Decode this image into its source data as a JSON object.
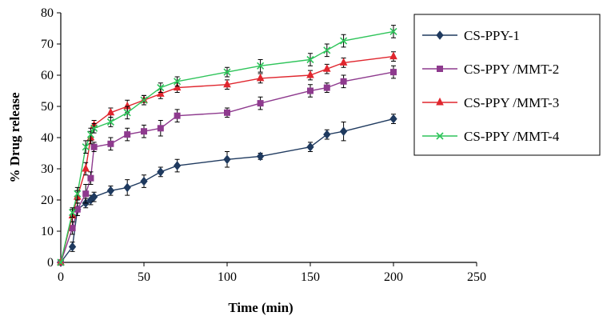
{
  "chart_data": {
    "type": "line",
    "title": "",
    "xlabel": "Time (min)",
    "ylabel": "% Drug release",
    "xlim": [
      0,
      250
    ],
    "ylim": [
      0,
      80
    ],
    "xticks": [
      0,
      50,
      100,
      150,
      200,
      250
    ],
    "yticks": [
      0,
      10,
      20,
      30,
      40,
      50,
      60,
      70,
      80
    ],
    "grid": false,
    "legend_position": "top-right",
    "series": [
      {
        "name": "CS-PPY-1",
        "color": "#1f3a5f",
        "marker": "diamond",
        "x": [
          0,
          7,
          10,
          15,
          18,
          20,
          30,
          40,
          50,
          60,
          70,
          100,
          120,
          150,
          160,
          170,
          200
        ],
        "y": [
          0,
          5,
          17,
          19,
          20,
          21,
          23,
          24,
          26,
          29,
          31,
          33,
          34,
          37,
          41,
          42,
          46
        ],
        "err": [
          0,
          1.5,
          2,
          1.5,
          1.5,
          1.5,
          1.5,
          2.5,
          2,
          1.5,
          2,
          2.5,
          1,
          1.5,
          1.5,
          3,
          1.5
        ]
      },
      {
        "name": "CS-PPY /MMT-2",
        "color": "#8e3a8e",
        "marker": "square",
        "x": [
          0,
          7,
          10,
          15,
          18,
          20,
          30,
          40,
          50,
          60,
          70,
          100,
          120,
          150,
          160,
          170,
          200
        ],
        "y": [
          0,
          11,
          17,
          22,
          27,
          37,
          38,
          41,
          42,
          43,
          47,
          48,
          51,
          55,
          56,
          58,
          61
        ],
        "err": [
          0,
          2,
          2,
          3,
          2,
          1.5,
          2,
          2,
          2,
          2.5,
          2,
          1.5,
          2,
          2,
          1.5,
          2,
          2
        ]
      },
      {
        "name": "CS-PPY /MMT-3",
        "color": "#e0262e",
        "marker": "triangle",
        "x": [
          0,
          7,
          10,
          15,
          18,
          20,
          30,
          40,
          50,
          60,
          70,
          100,
          120,
          150,
          160,
          170,
          200
        ],
        "y": [
          0,
          15,
          21,
          30,
          40,
          44,
          48,
          50,
          52,
          54,
          56,
          57,
          59,
          60,
          62,
          64,
          66
        ],
        "err": [
          0,
          2,
          2,
          2,
          2,
          1.5,
          1.5,
          2,
          1.5,
          1.5,
          1.5,
          1.5,
          1.5,
          1.5,
          1.5,
          1.5,
          1.5
        ]
      },
      {
        "name": "CS-PPY /MMT-4",
        "color": "#2ec45a",
        "marker": "x",
        "x": [
          0,
          7,
          10,
          15,
          18,
          20,
          30,
          40,
          50,
          60,
          70,
          100,
          120,
          150,
          160,
          170,
          200
        ],
        "y": [
          0,
          16,
          22,
          37,
          41,
          43,
          45,
          48,
          52,
          56,
          58,
          61,
          63,
          65,
          68,
          71,
          74
        ],
        "err": [
          0,
          1.5,
          2,
          2,
          2,
          1.5,
          1.5,
          2,
          1.5,
          1.5,
          1.5,
          1.5,
          2,
          2,
          2,
          2,
          2
        ]
      }
    ]
  }
}
